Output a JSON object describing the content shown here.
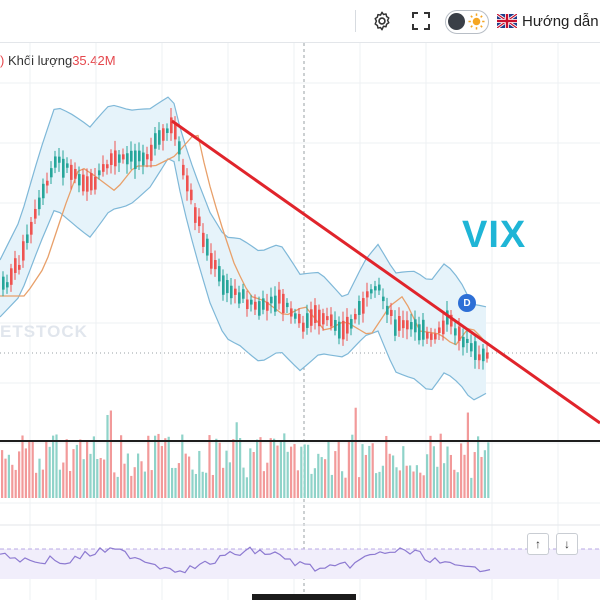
{
  "toolbar": {
    "settings_icon": "gear-icon",
    "fullscreen_icon": "fullscreen-icon",
    "theme_toggle_icon": "sun-icon",
    "flag_icon": "uk-flag-icon",
    "guide_label": "Hướng dẫn"
  },
  "legend": {
    "prefix": ")",
    "volume_label": "Khối lượng",
    "volume_value": "35.42M"
  },
  "chart": {
    "ticker": "VIX",
    "badge": "D",
    "watermark": "ETSTOCK",
    "trendline_color": "#e0242b",
    "support_line_color": "#1e1e1e",
    "band_color": "#7fb8d8",
    "ma_color": "#e8a06a",
    "up_color": "#26a69a",
    "down_color": "#ef5350"
  },
  "panel_buttons": {
    "up_icon": "arrow-up-icon",
    "up_label": "↑",
    "down_icon": "arrow-down-icon",
    "down_label": "↓"
  }
}
